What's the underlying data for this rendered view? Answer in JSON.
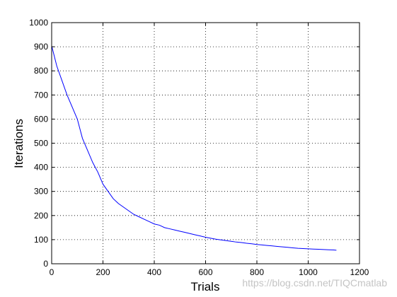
{
  "chart_data": {
    "type": "line",
    "title": "",
    "xlabel": "Trials",
    "ylabel": "Iterations",
    "xlim": [
      0,
      1200
    ],
    "ylim": [
      0,
      1000
    ],
    "xticks": [
      0,
      200,
      400,
      600,
      800,
      1000,
      1200
    ],
    "yticks": [
      0,
      100,
      200,
      300,
      400,
      500,
      600,
      700,
      800,
      900,
      1000
    ],
    "grid": true,
    "legend": "none",
    "series_color": "#0000ff",
    "series": [
      {
        "x": [
          1,
          20,
          40,
          60,
          80,
          100,
          120,
          140,
          160,
          180,
          200,
          220,
          240,
          260,
          280,
          300,
          320,
          340,
          360,
          380,
          400,
          420,
          440,
          460,
          480,
          500,
          520,
          540,
          560,
          580,
          600,
          620,
          640,
          660,
          680,
          700,
          720,
          740,
          760,
          780,
          800,
          820,
          840,
          860,
          880,
          900,
          920,
          940,
          960,
          980,
          1000,
          1020,
          1040,
          1060,
          1080,
          1100,
          1110
        ],
        "y": [
          900,
          820,
          760,
          700,
          650,
          600,
          520,
          470,
          420,
          380,
          330,
          300,
          270,
          250,
          235,
          220,
          205,
          195,
          185,
          175,
          165,
          160,
          150,
          145,
          140,
          135,
          130,
          125,
          120,
          115,
          110,
          106,
          102,
          99,
          96,
          93,
          90,
          88,
          85,
          83,
          80,
          78,
          76,
          74,
          72,
          70,
          68,
          66,
          64,
          63,
          62,
          61,
          60,
          59,
          58,
          57,
          56
        ]
      }
    ]
  },
  "watermark": "https://blog.csdn.net/TIQCmatlab"
}
